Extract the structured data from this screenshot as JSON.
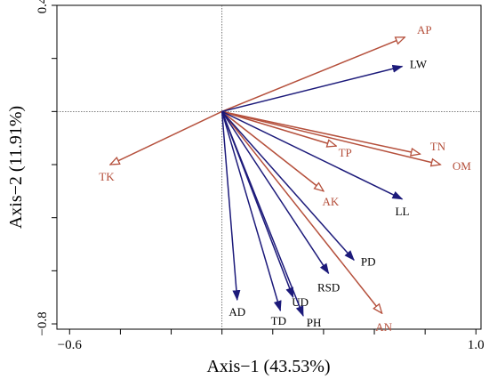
{
  "chart_data": {
    "type": "biplot",
    "xlabel": "Axis−1 (43.53%)",
    "ylabel": "Axis−2 (11.91%)",
    "xlim": [
      -0.65,
      1.02
    ],
    "ylim": [
      -0.82,
      0.4
    ],
    "x_ticks": [
      -0.6,
      1.0
    ],
    "x_tick_labels": [
      "−0.6",
      "1.0"
    ],
    "y_ticks": [
      0.4,
      -0.8
    ],
    "y_tick_labels": [
      "0.4",
      "−0.8"
    ],
    "grid": false,
    "reference_lines": {
      "x": 0,
      "y": 0,
      "style": "dotted"
    },
    "colors": {
      "environmental": "#b5503c",
      "response": "#1c1a7a"
    },
    "series": [
      {
        "group": "environmental",
        "vectors": [
          {
            "label": "AP",
            "x": 0.72,
            "y": 0.28
          },
          {
            "label": "TN",
            "x": 0.78,
            "y": -0.16
          },
          {
            "label": "OM",
            "x": 0.86,
            "y": -0.2
          },
          {
            "label": "TP",
            "x": 0.45,
            "y": -0.13
          },
          {
            "label": "AK",
            "x": 0.4,
            "y": -0.3
          },
          {
            "label": "AN",
            "x": 0.63,
            "y": -0.76
          },
          {
            "label": "TK",
            "x": -0.44,
            "y": -0.2
          }
        ]
      },
      {
        "group": "response",
        "vectors": [
          {
            "label": "LW",
            "x": 0.71,
            "y": 0.17
          },
          {
            "label": "LL",
            "x": 0.71,
            "y": -0.33
          },
          {
            "label": "PD",
            "x": 0.52,
            "y": -0.56
          },
          {
            "label": "RSD",
            "x": 0.42,
            "y": -0.61
          },
          {
            "label": "UD",
            "x": 0.28,
            "y": -0.7
          },
          {
            "label": "PH",
            "x": 0.32,
            "y": -0.77
          },
          {
            "label": "TD",
            "x": 0.23,
            "y": -0.75
          },
          {
            "label": "AD",
            "x": 0.06,
            "y": -0.71
          }
        ]
      }
    ]
  }
}
